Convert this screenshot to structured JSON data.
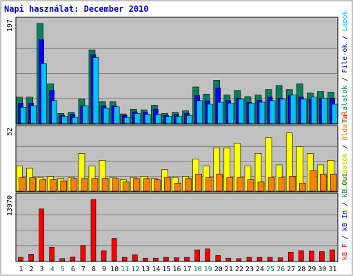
{
  "title": "Napi használat: December 2010",
  "colors": {
    "talalatok": "#00805c",
    "fileok": "#0000ff",
    "lapok": "#00c0ff",
    "latogatok": "#ffff00",
    "oldalak": "#ff8000",
    "kbin": "#0000ff",
    "kbout": "#00805c",
    "kbf": "#ff0000",
    "weekend": "#00805c",
    "weekday": "#000000"
  },
  "chart_data": [
    {
      "type": "bar",
      "panel": "top",
      "ymax_label": "197",
      "ylim": [
        0,
        197
      ],
      "x": [
        "1",
        "2",
        "3",
        "4",
        "5",
        "6",
        "7",
        "8",
        "9",
        "10",
        "11",
        "12",
        "13",
        "14",
        "15",
        "16",
        "17",
        "18",
        "19",
        "20",
        "21",
        "22",
        "23",
        "24",
        "25",
        "26",
        "27",
        "28",
        "29",
        "30",
        "31"
      ],
      "series": [
        {
          "name": "Találatok",
          "values": [
            52,
            52,
            197,
            78,
            20,
            22,
            48,
            145,
            43,
            43,
            19,
            28,
            27,
            36,
            20,
            22,
            25,
            72,
            58,
            85,
            56,
            65,
            53,
            56,
            67,
            75,
            67,
            78,
            60,
            63,
            62
          ]
        },
        {
          "name": "File-ok",
          "values": [
            40,
            40,
            165,
            65,
            16,
            18,
            35,
            135,
            35,
            35,
            16,
            23,
            22,
            28,
            16,
            18,
            20,
            55,
            45,
            70,
            45,
            50,
            42,
            46,
            52,
            50,
            55,
            52,
            48,
            50,
            50
          ]
        },
        {
          "name": "Lapok",
          "values": [
            32,
            35,
            118,
            45,
            14,
            12,
            35,
            130,
            30,
            33,
            12,
            20,
            18,
            18,
            14,
            14,
            16,
            45,
            38,
            42,
            40,
            48,
            40,
            42,
            45,
            48,
            56,
            48,
            52,
            50,
            38
          ]
        }
      ]
    },
    {
      "type": "bar",
      "panel": "middle",
      "ymax_label": "52",
      "ylim": [
        0,
        52
      ],
      "series": [
        {
          "name": "Látogatók",
          "values": [
            22,
            20,
            12,
            13,
            11,
            12,
            33,
            22,
            27,
            12,
            10,
            12,
            13,
            11,
            19,
            12,
            13,
            28,
            22,
            38,
            38,
            42,
            22,
            33,
            47,
            23,
            51,
            39,
            33,
            23,
            27
          ]
        },
        {
          "name": "Oldalak",
          "values": [
            12,
            12,
            10,
            10,
            9,
            11,
            11,
            11,
            11,
            11,
            8,
            11,
            11,
            10,
            12,
            7,
            11,
            15,
            12,
            15,
            12,
            12,
            10,
            8,
            12,
            12,
            13,
            7,
            18,
            15,
            15
          ]
        }
      ]
    },
    {
      "type": "bar",
      "panel": "bottom",
      "ymax_label": "13970",
      "ylim": [
        0,
        13970
      ],
      "series": [
        {
          "name": "kB F",
          "values": [
            800,
            1500,
            11800,
            3100,
            500,
            900,
            3500,
            13970,
            2300,
            5100,
            800,
            1400,
            600,
            600,
            800,
            700,
            800,
            2500,
            2700,
            1200,
            600,
            500,
            800,
            800,
            800,
            700,
            2000,
            2300,
            2200,
            2100,
            2500
          ]
        }
      ]
    }
  ],
  "right_labels": {
    "top": [
      {
        "text": "Találatok",
        "color": "#00805c"
      },
      {
        "text": " / ",
        "color": "#000000"
      },
      {
        "text": "File-ok",
        "color": "#0000ff"
      },
      {
        "text": " / ",
        "color": "#000000"
      },
      {
        "text": "Lapok",
        "color": "#00c0ff"
      }
    ],
    "middle": [
      {
        "text": "Látogatók",
        "color": "#c8c800"
      },
      {
        "text": " / ",
        "color": "#000000"
      },
      {
        "text": "Oldalak",
        "color": "#ff8000"
      }
    ],
    "bottom": [
      {
        "text": "kB F",
        "color": "#ff0000"
      },
      {
        "text": " / ",
        "color": "#000000"
      },
      {
        "text": "kB In",
        "color": "#0000ff"
      },
      {
        "text": " / ",
        "color": "#000000"
      },
      {
        "text": "kB Out",
        "color": "#00805c"
      }
    ]
  },
  "weekend_days": [
    "4",
    "5",
    "11",
    "12",
    "18",
    "19",
    "25",
    "26"
  ]
}
